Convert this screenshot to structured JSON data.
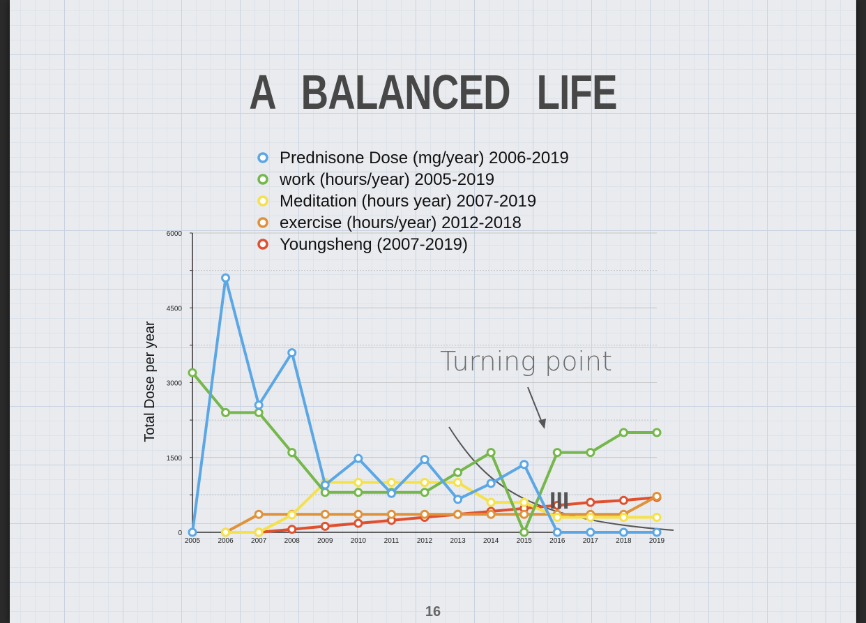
{
  "slide": {
    "title": "A BALANCED LIFE",
    "page_number": "16",
    "annotation": "Turning point",
    "handwritten_mark": "III"
  },
  "colors": {
    "prednisone": "#5ba7e6",
    "work": "#75b74a",
    "meditation": "#f5e14a",
    "exercise": "#e0923a",
    "youngsheng": "#e0502e",
    "curve": "#555555"
  },
  "chart_data": {
    "type": "line",
    "ylabel": "Total Dose per year",
    "xlabel": "",
    "ylim": [
      0,
      6000
    ],
    "yticks": [
      0,
      1500,
      3000,
      4500,
      6000
    ],
    "x": [
      "2005",
      "2006",
      "2007",
      "2008",
      "2009",
      "2010",
      "2011",
      "2012",
      "2013",
      "2014",
      "2015",
      "2016",
      "2017",
      "2018",
      "2019"
    ],
    "legend_position": "top",
    "grid": true,
    "series": [
      {
        "name": "Prednisone Dose (mg/year) 2006-2019",
        "color": "#5ba7e6",
        "values": [
          0,
          5100,
          2550,
          3600,
          950,
          1480,
          780,
          1460,
          660,
          980,
          1360,
          0,
          0,
          0,
          0
        ]
      },
      {
        "name": "work (hours/year) 2005-2019",
        "color": "#75b74a",
        "values": [
          3200,
          2400,
          2400,
          1600,
          800,
          800,
          800,
          800,
          1200,
          1600,
          0,
          1600,
          1600,
          2000,
          2000
        ]
      },
      {
        "name": "Meditation (hours year) 2007-2019",
        "color": "#f5e14a",
        "values": [
          null,
          0,
          0,
          350,
          1000,
          1000,
          1000,
          1000,
          1000,
          600,
          600,
          300,
          300,
          300,
          300
        ]
      },
      {
        "name": "exercise (hours/year) 2012-2018",
        "color": "#e0923a",
        "values": [
          null,
          0,
          360,
          360,
          360,
          360,
          360,
          360,
          360,
          360,
          360,
          360,
          360,
          360,
          720
        ]
      },
      {
        "name": "Youngsheng (2007-2019)",
        "color": "#e0502e",
        "values": [
          null,
          null,
          0,
          60,
          120,
          180,
          240,
          300,
          360,
          420,
          480,
          540,
          600,
          640,
          700
        ]
      }
    ]
  }
}
